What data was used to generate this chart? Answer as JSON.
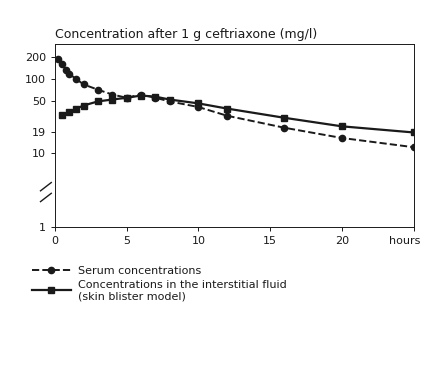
{
  "title": "Concentration after 1 g ceftriaxone (mg/l)",
  "serum_x": [
    0.25,
    0.5,
    0.75,
    1.0,
    1.5,
    2.0,
    3.0,
    4.0,
    5.0,
    6.0,
    7.0,
    8.0,
    10.0,
    12.0,
    16.0,
    20.0,
    25.0
  ],
  "serum_y": [
    190,
    160,
    135,
    118,
    100,
    85,
    72,
    62,
    56,
    62,
    56,
    50,
    42,
    32,
    22,
    16,
    12
  ],
  "blister_x": [
    0.5,
    1.0,
    1.5,
    2.0,
    3.0,
    4.0,
    5.0,
    6.0,
    7.0,
    8.0,
    10.0,
    12.0,
    16.0,
    20.0,
    25.0
  ],
  "blister_y": [
    33,
    36,
    40,
    44,
    50,
    53,
    56,
    60,
    58,
    53,
    47,
    40,
    30,
    23,
    19
  ],
  "xlim": [
    0,
    25
  ],
  "ylim_log": [
    1,
    300
  ],
  "yticks": [
    1,
    10,
    19,
    50,
    100,
    200
  ],
  "ytick_labels": [
    "1",
    "10",
    "19",
    "50",
    "100",
    "200"
  ],
  "xticks": [
    0,
    5,
    10,
    15,
    20,
    25
  ],
  "xtick_labels": [
    "0",
    "5",
    "10",
    "15",
    "20",
    "hours 25"
  ],
  "legend_serum": "Serum concentrations",
  "legend_blister": "Concentrations in the interstitial fluid\n(skin blister model)",
  "bg_color": "#ffffff",
  "line_color": "#1a1a1a"
}
